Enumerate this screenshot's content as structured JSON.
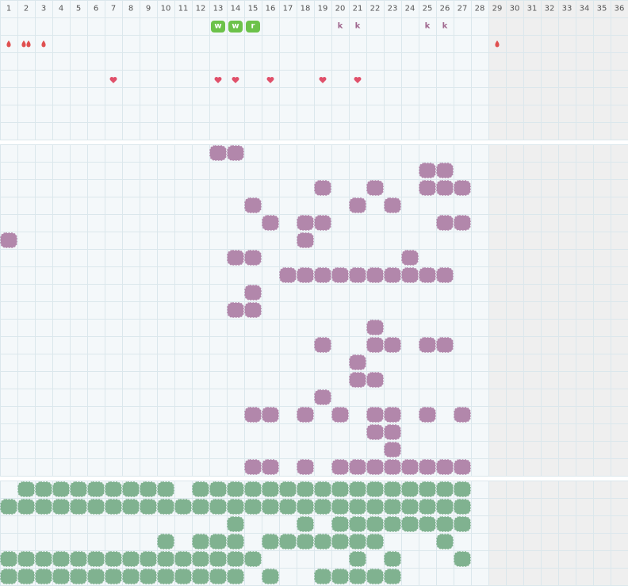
{
  "columns": [
    1,
    2,
    3,
    4,
    5,
    6,
    7,
    8,
    9,
    10,
    11,
    12,
    13,
    14,
    15,
    16,
    17,
    18,
    19,
    20,
    21,
    22,
    23,
    24,
    25,
    26,
    27,
    28,
    29,
    30,
    31,
    32,
    33,
    34,
    35,
    36
  ],
  "legend": {
    "W": "badge",
    "K": "label",
    "D": "drop",
    "d": "double-drop",
    "H": "heart",
    "B": "purple-blob",
    "G": "green-blob"
  },
  "texts": [
    "w",
    "w",
    "r",
    "k",
    "k",
    "k",
    "k"
  ],
  "sections": [
    {
      "rows": [
        "............WWW....KK...KK..........",
        "DdD.........................D.......",
        "....................................",
        "......H.....HH.H..H.H...............",
        "....................................",
        "....................................",
        "...................................."
      ]
    },
    {
      "rows": [
        "............BB......................",
        "........................BB..........",
        "..................B..B..BBB.........",
        "..............B.....B.B.............",
        "...............B.BB......BB.........",
        "B................B..................",
        ".............BB........B............",
        "................BBBBBBBBBB..........",
        "..............B.....................",
        ".............BB.....................",
        ".....................B..............",
        "..................B..BB.BB..........",
        "....................B...............",
        "....................BB..............",
        "..................B.................",
        "..............BB.B.B.BB.B.B.........",
        ".....................BB.............",
        "......................B.............",
        "..............BB.B.BBBBBBBB........."
      ]
    },
    {
      "rows": [
        ".GGGGGGGGG.GGGGGGGGGGGGGGGG.........",
        "GGGGGGGGGGGGGGGGGGGGGGGGGGG.........",
        ".............G...G.GGGGGGGG.........",
        ".........G.GGG.GGGGGGG...G..........",
        "GGGGGGGGGGGGGGG.....G.G...G.........",
        "GGGGGGGGGGGGGG.G..GGGGG............."
      ]
    }
  ]
}
